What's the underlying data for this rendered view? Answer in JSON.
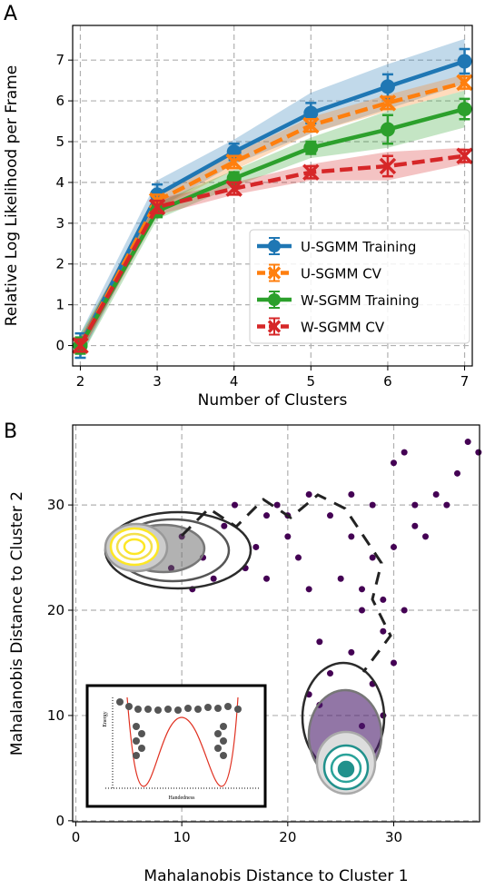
{
  "chart_data": [
    {
      "type": "line",
      "panel_label": "A",
      "xlabel": "Number of Clusters",
      "ylabel": "Relative Log Likelihood per Frame",
      "x": [
        2,
        3,
        4,
        5,
        6,
        7
      ],
      "xlim": [
        1.9,
        7.1
      ],
      "ylim": [
        -0.5,
        7.85
      ],
      "xticks": [
        2,
        3,
        4,
        5,
        6,
        7
      ],
      "yticks": [
        0,
        1,
        2,
        3,
        4,
        5,
        6,
        7
      ],
      "grid": true,
      "legend": "lower right",
      "series": [
        {
          "name": "U-SGMM Training",
          "color": "#1f77b4",
          "marker": "circle",
          "linestyle": "solid",
          "values": [
            0,
            3.7,
            4.75,
            5.7,
            6.35,
            6.97
          ],
          "errors": [
            0.3,
            0.25,
            0.2,
            0.25,
            0.3,
            0.3
          ],
          "band": [
            0.3,
            0.35,
            0.3,
            0.5,
            0.55,
            0.55
          ]
        },
        {
          "name": "U-SGMM CV",
          "color": "#ff7f0e",
          "marker": "x",
          "linestyle": "dashed",
          "values": [
            0,
            3.55,
            4.5,
            5.4,
            5.95,
            6.45
          ],
          "errors": [
            0.15,
            0.15,
            0.15,
            0.15,
            0.15,
            0.15
          ],
          "band": [
            0.2,
            0.2,
            0.2,
            0.2,
            0.2,
            0.2
          ]
        },
        {
          "name": "W-SGMM Training",
          "color": "#2ca02c",
          "marker": "circle",
          "linestyle": "solid",
          "values": [
            0,
            3.3,
            4.1,
            4.85,
            5.3,
            5.8
          ],
          "errors": [
            0.2,
            0.15,
            0.15,
            0.15,
            0.35,
            0.25
          ],
          "band": [
            0.3,
            0.2,
            0.2,
            0.25,
            0.45,
            0.45
          ]
        },
        {
          "name": "W-SGMM CV",
          "color": "#d62728",
          "marker": "x",
          "linestyle": "dashed",
          "values": [
            0,
            3.4,
            3.85,
            4.25,
            4.4,
            4.65
          ],
          "errors": [
            0.15,
            0.15,
            0.15,
            0.15,
            0.25,
            0.15
          ],
          "band": [
            0.2,
            0.2,
            0.15,
            0.2,
            0.35,
            0.2
          ]
        }
      ]
    },
    {
      "type": "scatter",
      "panel_label": "B",
      "xlabel": "Mahalanobis Distance to Cluster 1",
      "ylabel": "Mahalanobis Distance to Cluster 2",
      "xlim": [
        -0.3,
        38.1
      ],
      "ylim": [
        -0.1,
        37.6
      ],
      "xticks": [
        0,
        10,
        20,
        30
      ],
      "yticks": [
        0,
        10,
        20,
        30
      ],
      "grid": true,
      "inset": {
        "ylabel": "Energy",
        "xlabel": "Handedness"
      },
      "series": [
        {
          "color": "#440154",
          "x": [
            10,
            12,
            14,
            16,
            18,
            20,
            22,
            24,
            26,
            28,
            30,
            22,
            25,
            27,
            29,
            30,
            26,
            24,
            28,
            23,
            25,
            27,
            29,
            24,
            33,
            35,
            37,
            38,
            36,
            32,
            31,
            19,
            17,
            11,
            13,
            28,
            30,
            31,
            23,
            22,
            20,
            26,
            15,
            9,
            21,
            27,
            29,
            32,
            34,
            18
          ],
          "y": [
            27,
            25,
            28,
            24,
            29,
            27,
            31,
            29,
            27,
            25,
            26,
            22,
            23,
            20,
            18,
            15,
            16,
            14,
            13,
            11,
            8,
            9,
            10,
            6,
            27,
            30,
            36,
            35,
            33,
            30,
            20,
            30,
            26,
            22,
            23,
            30,
            34,
            35,
            17,
            12,
            29,
            31,
            30,
            24,
            25,
            22,
            21,
            28,
            31,
            23
          ]
        },
        {
          "color": "#fde725",
          "x": [
            4,
            5,
            5.5,
            6,
            6.5,
            7,
            4.5,
            5,
            6,
            3.5,
            7.5,
            5.5
          ],
          "y": [
            26,
            25,
            27,
            26,
            25.5,
            26.5,
            27,
            24.5,
            27.5,
            25.5,
            25,
            24
          ]
        },
        {
          "color": "#21918c",
          "x": [
            24,
            25,
            26,
            27,
            25.5,
            24.5,
            26.5,
            28,
            23.5,
            25
          ],
          "y": [
            4,
            5,
            6,
            5,
            3.5,
            6.5,
            4,
            6,
            5.5,
            7
          ]
        }
      ]
    }
  ]
}
